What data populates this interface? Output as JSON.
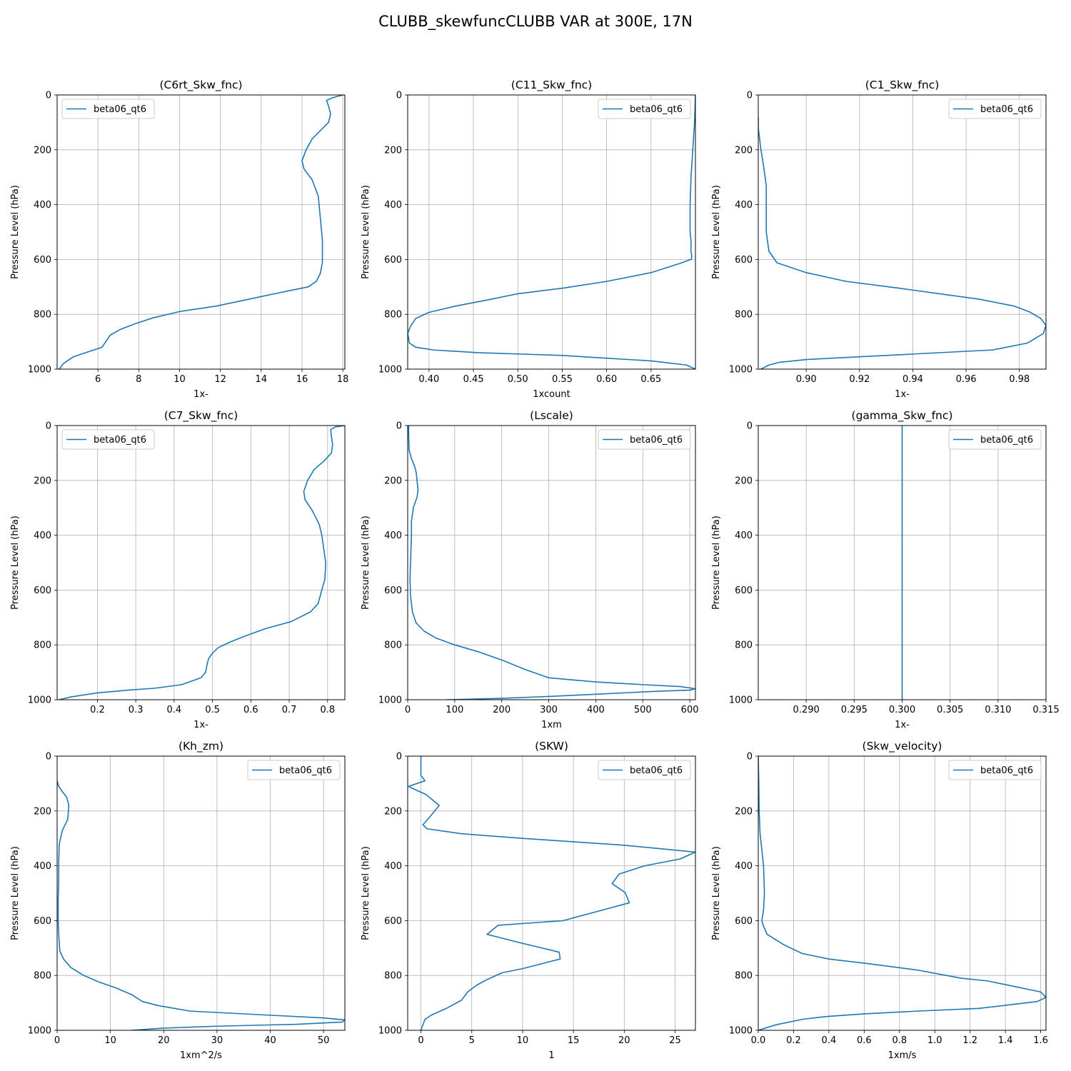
{
  "figure": {
    "suptitle": "CLUBB_skewfuncCLUBB VAR at 300E, 17N",
    "ylabel": "Pressure Level (hPa)",
    "line_color": "#1f77b4"
  },
  "chart_data": [
    {
      "type": "line",
      "title": "(C6rt_Skw_fnc)",
      "xlabel": "1x-",
      "ylabel": "Pressure Level (hPa)",
      "xlim": [
        4.0,
        18.1
      ],
      "ylim": [
        1000,
        0
      ],
      "xticks": [
        "6",
        "8",
        "10",
        "12",
        "14",
        "16",
        "18"
      ],
      "xtick_values": [
        6,
        8,
        10,
        12,
        14,
        16,
        18
      ],
      "yticks": [
        "0",
        "200",
        "400",
        "600",
        "800",
        "1000"
      ],
      "grid": true,
      "legend_position": "upper-left",
      "series": [
        {
          "name": "beta06_qt6",
          "x": [
            18.0,
            17.5,
            17.2,
            17.3,
            17.4,
            17.3,
            16.9,
            16.5,
            16.2,
            16.0,
            16.1,
            16.5,
            16.8,
            16.9,
            17.0,
            17.0,
            17.0,
            16.9,
            16.7,
            16.3,
            15.3,
            13.7,
            11.8,
            10.0,
            8.7,
            7.8,
            7.1,
            6.6,
            6.2,
            5.6,
            4.8,
            4.3,
            4.1
          ],
          "y": [
            0,
            10,
            20,
            40,
            70,
            100,
            130,
            160,
            200,
            240,
            270,
            310,
            370,
            450,
            530,
            570,
            610,
            650,
            680,
            700,
            715,
            740,
            770,
            790,
            813,
            835,
            855,
            876,
            920,
            935,
            955,
            980,
            1000
          ]
        }
      ]
    },
    {
      "type": "line",
      "title": "(C11_Skw_fnc)",
      "xlabel": "1xcount",
      "ylabel": "Pressure Level (hPa)",
      "xlim": [
        0.376,
        0.7
      ],
      "ylim": [
        1000,
        0
      ],
      "xticks": [
        "0.40",
        "0.45",
        "0.50",
        "0.55",
        "0.60",
        "0.65"
      ],
      "xtick_values": [
        0.4,
        0.45,
        0.5,
        0.55,
        0.6,
        0.65
      ],
      "yticks": [
        "0",
        "200",
        "400",
        "600",
        "800",
        "1000"
      ],
      "grid": true,
      "legend_position": "upper-right",
      "series": [
        {
          "name": "beta06_qt6",
          "x": [
            0.7,
            0.699,
            0.697,
            0.695,
            0.694,
            0.694,
            0.695,
            0.695,
            0.696,
            0.695,
            0.682,
            0.65,
            0.6,
            0.55,
            0.5,
            0.47,
            0.43,
            0.4,
            0.385,
            0.379,
            0.376,
            0.378,
            0.385,
            0.405,
            0.455,
            0.55,
            0.6,
            0.65,
            0.69,
            0.7
          ],
          "y": [
            0,
            100,
            200,
            300,
            400,
            500,
            530,
            570,
            590,
            600,
            615,
            648,
            680,
            705,
            725,
            745,
            770,
            793,
            815,
            845,
            870,
            905,
            920,
            930,
            940,
            950,
            960,
            970,
            985,
            1000
          ]
        }
      ]
    },
    {
      "type": "line",
      "title": "(C1_Skw_fnc)",
      "xlabel": "1x-",
      "ylabel": "Pressure Level (hPa)",
      "xlim": [
        0.882,
        0.99
      ],
      "ylim": [
        1000,
        0
      ],
      "xticks": [
        "0.90",
        "0.92",
        "0.94",
        "0.96",
        "0.98"
      ],
      "xtick_values": [
        0.9,
        0.92,
        0.94,
        0.96,
        0.98
      ],
      "yticks": [
        "0",
        "200",
        "400",
        "600",
        "800",
        "1000"
      ],
      "grid": true,
      "legend_position": "upper-right",
      "series": [
        {
          "name": "beta06_qt6",
          "x": [
            0.882,
            0.882,
            0.883,
            0.884,
            0.885,
            0.885,
            0.885,
            0.886,
            0.889,
            0.9,
            0.915,
            0.935,
            0.95,
            0.965,
            0.978,
            0.984,
            0.988,
            0.99,
            0.989,
            0.983,
            0.97,
            0.94,
            0.92,
            0.9,
            0.89,
            0.886,
            0.884,
            0.883
          ],
          "y": [
            80,
            120,
            200,
            260,
            330,
            400,
            500,
            570,
            612,
            648,
            680,
            705,
            725,
            745,
            770,
            792,
            815,
            840,
            870,
            905,
            930,
            945,
            955,
            965,
            975,
            985,
            995,
            1000
          ]
        }
      ]
    },
    {
      "type": "line",
      "title": "(C7_Skw_fnc)",
      "xlabel": "1x-",
      "ylabel": "Pressure Level (hPa)",
      "xlim": [
        0.095,
        0.845
      ],
      "ylim": [
        1000,
        0
      ],
      "xticks": [
        "0.2",
        "0.3",
        "0.4",
        "0.5",
        "0.6",
        "0.7",
        "0.8"
      ],
      "xtick_values": [
        0.2,
        0.3,
        0.4,
        0.5,
        0.6,
        0.7,
        0.8
      ],
      "yticks": [
        "0",
        "200",
        "400",
        "600",
        "800",
        "1000"
      ],
      "grid": true,
      "legend_position": "upper-left",
      "series": [
        {
          "name": "beta06_qt6",
          "x": [
            0.845,
            0.82,
            0.808,
            0.81,
            0.813,
            0.81,
            0.79,
            0.765,
            0.748,
            0.738,
            0.741,
            0.76,
            0.778,
            0.785,
            0.79,
            0.795,
            0.793,
            0.785,
            0.775,
            0.755,
            0.705,
            0.64,
            0.59,
            0.545,
            0.515,
            0.5,
            0.49,
            0.486,
            0.482,
            0.47,
            0.42,
            0.35,
            0.28,
            0.2,
            0.13,
            0.1
          ],
          "y": [
            0,
            5,
            15,
            40,
            70,
            100,
            130,
            160,
            200,
            240,
            270,
            310,
            360,
            400,
            450,
            500,
            560,
            600,
            650,
            680,
            715,
            740,
            765,
            790,
            810,
            830,
            850,
            870,
            900,
            920,
            945,
            958,
            965,
            975,
            990,
            1000
          ]
        }
      ]
    },
    {
      "type": "line",
      "title": "(Lscale)",
      "xlabel": "1xm",
      "ylabel": "Pressure Level (hPa)",
      "xlim": [
        0,
        612
      ],
      "ylim": [
        1000,
        0
      ],
      "xticks": [
        "0",
        "100",
        "200",
        "300",
        "400",
        "500",
        "600"
      ],
      "xtick_values": [
        0,
        100,
        200,
        300,
        400,
        500,
        600
      ],
      "yticks": [
        "0",
        "200",
        "400",
        "600",
        "800",
        "1000"
      ],
      "grid": true,
      "legend_position": "upper-right",
      "series": [
        {
          "name": "beta06_qt6",
          "x": [
            2,
            2,
            3,
            8,
            15,
            18,
            22,
            20,
            12,
            8,
            8,
            6,
            5,
            6,
            10,
            18,
            35,
            60,
            100,
            150,
            200,
            250,
            300,
            400,
            500,
            580,
            612,
            600,
            520,
            400,
            300,
            200,
            83
          ],
          "y": [
            0,
            30,
            90,
            120,
            150,
            170,
            235,
            260,
            300,
            350,
            400,
            500,
            560,
            620,
            680,
            720,
            750,
            775,
            800,
            825,
            855,
            890,
            920,
            935,
            945,
            952,
            960,
            965,
            970,
            980,
            988,
            995,
            1000
          ]
        }
      ]
    },
    {
      "type": "line",
      "title": "(gamma_Skw_fnc)",
      "xlabel": "1x-",
      "ylabel": "Pressure Level (hPa)",
      "xlim": [
        0.285,
        0.315
      ],
      "ylim": [
        1000,
        0
      ],
      "xticks": [
        "0.290",
        "0.295",
        "0.300",
        "0.305",
        "0.310",
        "0.315"
      ],
      "xtick_values": [
        0.29,
        0.295,
        0.3,
        0.305,
        0.31,
        0.315
      ],
      "yticks": [
        "0",
        "200",
        "400",
        "600",
        "800",
        "1000"
      ],
      "grid": true,
      "legend_position": "upper-right",
      "series": [
        {
          "name": "beta06_qt6",
          "x": [
            0.3,
            0.3
          ],
          "y": [
            0,
            1000
          ]
        }
      ]
    },
    {
      "type": "line",
      "title": "(Kh_zm)",
      "xlabel": "1xm^2/s",
      "ylabel": "Pressure Level (hPa)",
      "xlim": [
        0,
        54
      ],
      "ylim": [
        1000,
        0
      ],
      "xticks": [
        "0",
        "10",
        "20",
        "30",
        "40",
        "50"
      ],
      "xtick_values": [
        0,
        10,
        20,
        30,
        40,
        50
      ],
      "yticks": [
        "0",
        "200",
        "400",
        "600",
        "800",
        "1000"
      ],
      "grid": true,
      "legend_position": "upper-right",
      "series": [
        {
          "name": "beta06_qt6",
          "x": [
            0.0,
            0.3,
            1.0,
            1.8,
            2.2,
            2.0,
            1.0,
            0.4,
            0.3,
            0.3,
            0.2,
            0.2,
            0.3,
            0.5,
            1.2,
            2.5,
            5.0,
            8.0,
            11.0,
            14.0,
            16.0,
            19.0,
            25.0,
            40.0,
            50.0,
            54.0,
            53.5,
            45.0,
            30.0,
            20.0,
            14.0
          ],
          "y": [
            90,
            110,
            130,
            150,
            180,
            230,
            270,
            320,
            380,
            450,
            520,
            600,
            650,
            710,
            740,
            770,
            800,
            825,
            845,
            870,
            895,
            910,
            930,
            945,
            955,
            962,
            970,
            978,
            985,
            992,
            1000
          ]
        }
      ]
    },
    {
      "type": "line",
      "title": "(SKW)",
      "xlabel": "1",
      "ylabel": "Pressure Level (hPa)",
      "xlim": [
        -1.3,
        27.0
      ],
      "ylim": [
        1000,
        0
      ],
      "xticks": [
        "0",
        "5",
        "10",
        "15",
        "20",
        "25"
      ],
      "xtick_values": [
        0,
        5,
        10,
        15,
        20,
        25
      ],
      "yticks": [
        "0",
        "200",
        "400",
        "600",
        "800",
        "1000"
      ],
      "grid": true,
      "legend_position": "upper-right",
      "series": [
        {
          "name": "beta06_qt6",
          "x": [
            0.0,
            0.0,
            0.2,
            0.4,
            -1.2,
            -1.0,
            0.5,
            1.8,
            0.8,
            0.2,
            0.6,
            4.0,
            10.0,
            20.0,
            27.0,
            25.5,
            22.0,
            19.5,
            18.8,
            20.1,
            20.5,
            14.0,
            7.6,
            6.5,
            10.0,
            13.6,
            13.7,
            10.0,
            8.0,
            6.5,
            5.5,
            4.6,
            4.0,
            2.5,
            1.0,
            0.4,
            0.0
          ],
          "y": [
            0,
            70,
            80,
            90,
            110,
            115,
            140,
            180,
            225,
            250,
            265,
            283,
            300,
            325,
            350,
            375,
            400,
            430,
            465,
            498,
            535,
            600,
            617,
            650,
            683,
            715,
            740,
            775,
            790,
            815,
            835,
            860,
            890,
            920,
            945,
            960,
            1000
          ]
        }
      ]
    },
    {
      "type": "line",
      "title": "(Skw_velocity)",
      "xlabel": "1xm/s",
      "ylabel": "Pressure Level (hPa)",
      "xlim": [
        0.0,
        1.63
      ],
      "ylim": [
        1000,
        0
      ],
      "xticks": [
        "0.0",
        "0.2",
        "0.4",
        "0.6",
        "0.8",
        "1.0",
        "1.2",
        "1.4",
        "1.6"
      ],
      "xtick_values": [
        0.0,
        0.2,
        0.4,
        0.6,
        0.8,
        1.0,
        1.2,
        1.4,
        1.6
      ],
      "yticks": [
        "0",
        "200",
        "400",
        "600",
        "800",
        "1000"
      ],
      "grid": true,
      "legend_position": "upper-right",
      "series": [
        {
          "name": "beta06_qt6",
          "x": [
            0.0,
            0.003,
            0.005,
            0.01,
            0.02,
            0.03,
            0.035,
            0.03,
            0.02,
            0.03,
            0.05,
            0.1,
            0.15,
            0.25,
            0.4,
            0.6,
            0.9,
            1.15,
            1.3,
            1.45,
            1.6,
            1.63,
            1.58,
            1.45,
            1.25,
            0.9,
            0.6,
            0.38,
            0.25,
            0.1,
            0.0
          ],
          "y": [
            0,
            100,
            200,
            280,
            340,
            400,
            500,
            560,
            600,
            620,
            650,
            670,
            690,
            720,
            740,
            755,
            780,
            810,
            820,
            840,
            860,
            880,
            895,
            905,
            920,
            930,
            940,
            950,
            960,
            980,
            1000
          ]
        }
      ]
    }
  ]
}
